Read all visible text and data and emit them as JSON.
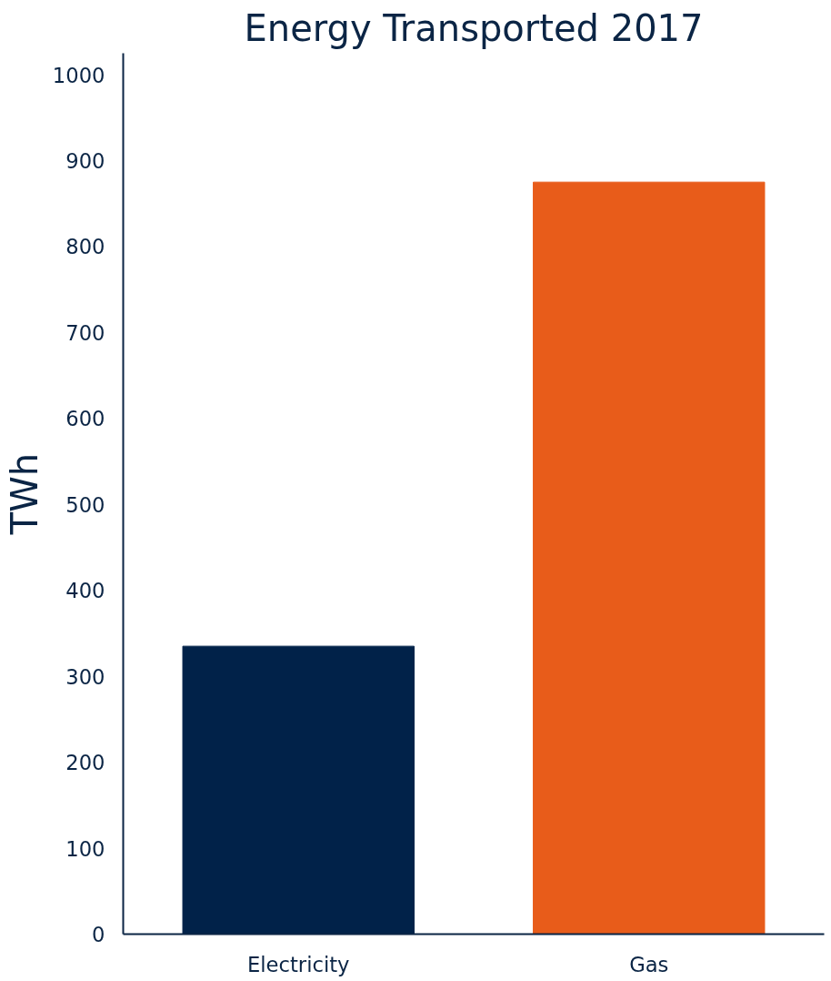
{
  "chart_data": {
    "type": "bar",
    "title": "Energy Transported 2017",
    "ylabel": "TWh",
    "categories": [
      "Electricity",
      "Gas"
    ],
    "values": [
      335,
      875
    ],
    "colors": [
      "#012249",
      "#e85c1a"
    ],
    "ylim": [
      0,
      1025
    ],
    "yticks": [
      0,
      100,
      200,
      300,
      400,
      500,
      600,
      700,
      800,
      900,
      1000
    ],
    "grid": false
  }
}
